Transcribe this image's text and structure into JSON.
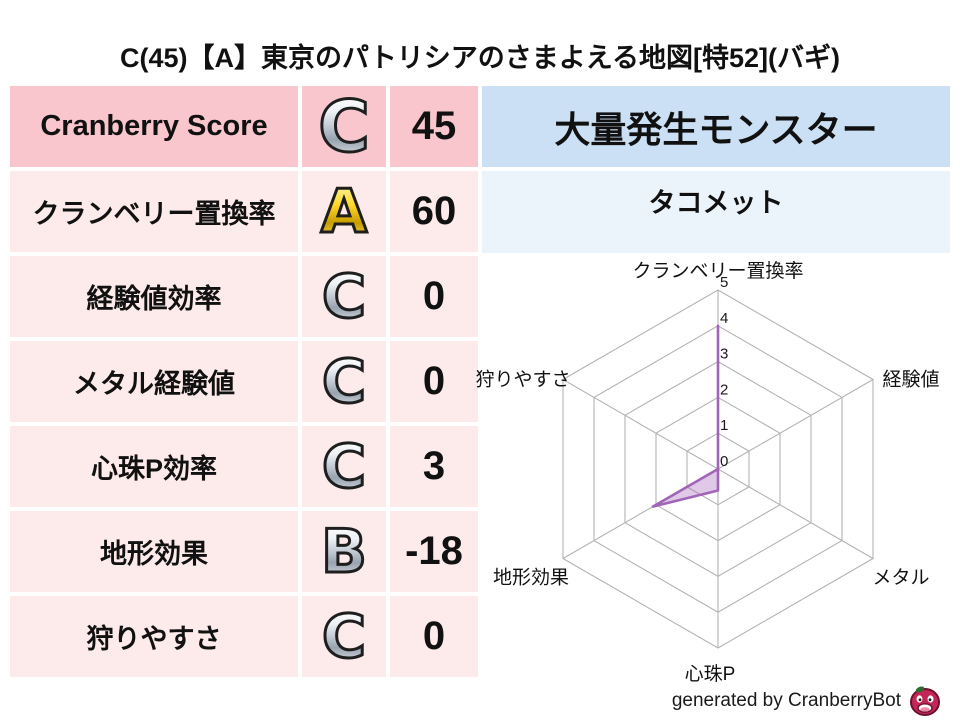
{
  "title": "C(45)【A】東京のパトリシアのさまよえる地図[特52](バギ)",
  "stats_table": {
    "rows": [
      {
        "label": "Cranberry Score",
        "grade": "C",
        "value": "45"
      },
      {
        "label": "クランベリー置換率",
        "grade": "A",
        "value": "60"
      },
      {
        "label": "経験値効率",
        "grade": "C",
        "value": "0"
      },
      {
        "label": "メタル経験値",
        "grade": "C",
        "value": "0"
      },
      {
        "label": "心珠P効率",
        "grade": "C",
        "value": "3"
      },
      {
        "label": "地形効果",
        "grade": "B",
        "value": "-18"
      },
      {
        "label": "狩りやすさ",
        "grade": "C",
        "value": "0"
      }
    ]
  },
  "monster_panel": {
    "header": "大量発生モンスター",
    "monster": "タコメット"
  },
  "chart_data": {
    "type": "radar",
    "categories": [
      "クランベリー置換率",
      "経験値",
      "メタル",
      "心珠P",
      "地形効果",
      "狩りやすさ"
    ],
    "values": [
      4,
      0,
      0,
      0.6,
      2.1,
      0
    ],
    "ticks": [
      0,
      1,
      2,
      3,
      4,
      5
    ],
    "rlim": [
      0,
      5
    ],
    "grid": "hexagonal-rings",
    "legend": "none",
    "grid_color": "#b3b3b3",
    "series_color": "#a165b8",
    "fill_color": "rgba(165,101,184,0.35)"
  },
  "footer": {
    "credit": "generated by CranberryBot",
    "icon": "cranberry-mascot-icon",
    "icon_colors": {
      "body": "#c42757",
      "outline": "#6e1030",
      "leaf": "#2e6b2e"
    }
  },
  "colors": {
    "row_header_pink": "#f8c6cc",
    "row_light_pink": "#fdeaea",
    "panel_blue": "#cce0f5",
    "panel_light_blue": "#ecf4fb",
    "grade_gold": "#ffd829",
    "grade_silver": "#bcc5cf"
  }
}
